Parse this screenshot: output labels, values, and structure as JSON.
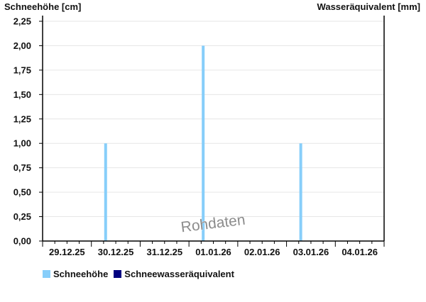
{
  "chart_data": {
    "type": "bar",
    "ylabel_left": "Schneehöhe [cm]",
    "ylabel_right": "Wasseräquivalent [mm]",
    "ylim": [
      0,
      2.25
    ],
    "yticks": [
      "0,00",
      "0,25",
      "0,50",
      "0,75",
      "1,00",
      "1,25",
      "1,50",
      "1,75",
      "2,00",
      "2,25"
    ],
    "xlim": [
      "2025-12-29T00:00",
      "2026-01-05T00:00"
    ],
    "xtick_labels": [
      "29.12.25",
      "30.12.25",
      "31.12.25",
      "01.01.26",
      "02.01.26",
      "03.01.26",
      "04.01.26"
    ],
    "grid": true,
    "legend_position": "bottom-left",
    "series": [
      {
        "name": "Schneehöhe",
        "color": "#87CEFA",
        "points": [
          {
            "x": "2025-12-30T07:00",
            "y": 1.0
          },
          {
            "x": "2026-01-01T07:00",
            "y": 2.0
          },
          {
            "x": "2026-01-03T07:00",
            "y": 1.0
          }
        ]
      },
      {
        "name": "Schneewasseräquivalent",
        "color": "#000080",
        "points": []
      }
    ],
    "watermark": "Rohdaten"
  }
}
